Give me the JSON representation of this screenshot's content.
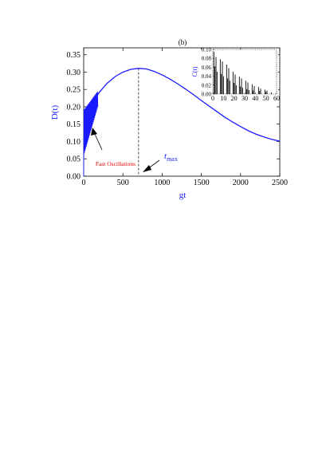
{
  "chart_data": [
    {
      "type": "line",
      "panel_label": "(b)",
      "xlabel": "gt",
      "ylabel": "D(t)",
      "xlim": [
        0,
        2500
      ],
      "ylim": [
        0,
        0.37
      ],
      "xticks": [
        0,
        500,
        1000,
        1500,
        2000,
        2500
      ],
      "yticks": [
        "0.00",
        "0.05",
        "0.10",
        "0.15",
        "0.20",
        "0.25",
        "0.30",
        "0.35"
      ],
      "yticks_values": [
        0.0,
        0.05,
        0.1,
        0.15,
        0.2,
        0.25,
        0.3,
        0.35
      ],
      "grid": false,
      "series": [
        {
          "color": "#1a1aff",
          "x": [
            0,
            100,
            150,
            200,
            300,
            400,
            500,
            600,
            700,
            800,
            900,
            1000,
            1100,
            1200,
            1300,
            1400,
            1500,
            1600,
            1700,
            1800,
            1900,
            2000,
            2100,
            2200,
            2300,
            2400,
            2500
          ],
          "y": [
            0.19,
            0.205,
            0.225,
            0.242,
            0.268,
            0.287,
            0.3,
            0.308,
            0.311,
            0.309,
            0.302,
            0.292,
            0.28,
            0.266,
            0.251,
            0.235,
            0.218,
            0.202,
            0.186,
            0.17,
            0.156,
            0.143,
            0.131,
            0.121,
            0.113,
            0.106,
            0.101
          ]
        }
      ],
      "t_max": 700,
      "annotations": [
        {
          "text": "Fast Oscillations",
          "color": "#e00000"
        },
        {
          "text": "t",
          "sub": "max",
          "color": "#1a1aff"
        }
      ]
    },
    {
      "type": "bar",
      "ylabel": "C(t)",
      "xlim": [
        0,
        60
      ],
      "ylim": [
        0,
        0.1
      ],
      "xticks": [
        0,
        10,
        20,
        30,
        40,
        50,
        60
      ],
      "yticks": [
        "0.00",
        "0.02",
        "0.04",
        "0.06",
        "0.08",
        "0.10"
      ],
      "yticks_values": [
        0.0,
        0.02,
        0.04,
        0.06,
        0.08,
        0.1
      ],
      "series": [
        {
          "color": "#000000",
          "x": [
            1,
            2,
            3,
            4,
            7,
            8,
            9,
            10,
            13,
            14,
            15,
            16,
            19,
            20,
            21,
            22,
            25,
            26,
            27,
            28,
            31,
            32,
            33,
            34,
            37,
            38,
            39,
            43,
            44,
            45,
            49,
            50,
            51,
            55
          ],
          "values": [
            0.095,
            0.062,
            0.083,
            0.05,
            0.078,
            0.045,
            0.073,
            0.04,
            0.066,
            0.035,
            0.058,
            0.03,
            0.05,
            0.025,
            0.044,
            0.02,
            0.039,
            0.017,
            0.035,
            0.014,
            0.03,
            0.011,
            0.026,
            0.009,
            0.022,
            0.008,
            0.018,
            0.016,
            0.007,
            0.012,
            0.01,
            0.005,
            0.008,
            0.004
          ]
        }
      ]
    }
  ]
}
